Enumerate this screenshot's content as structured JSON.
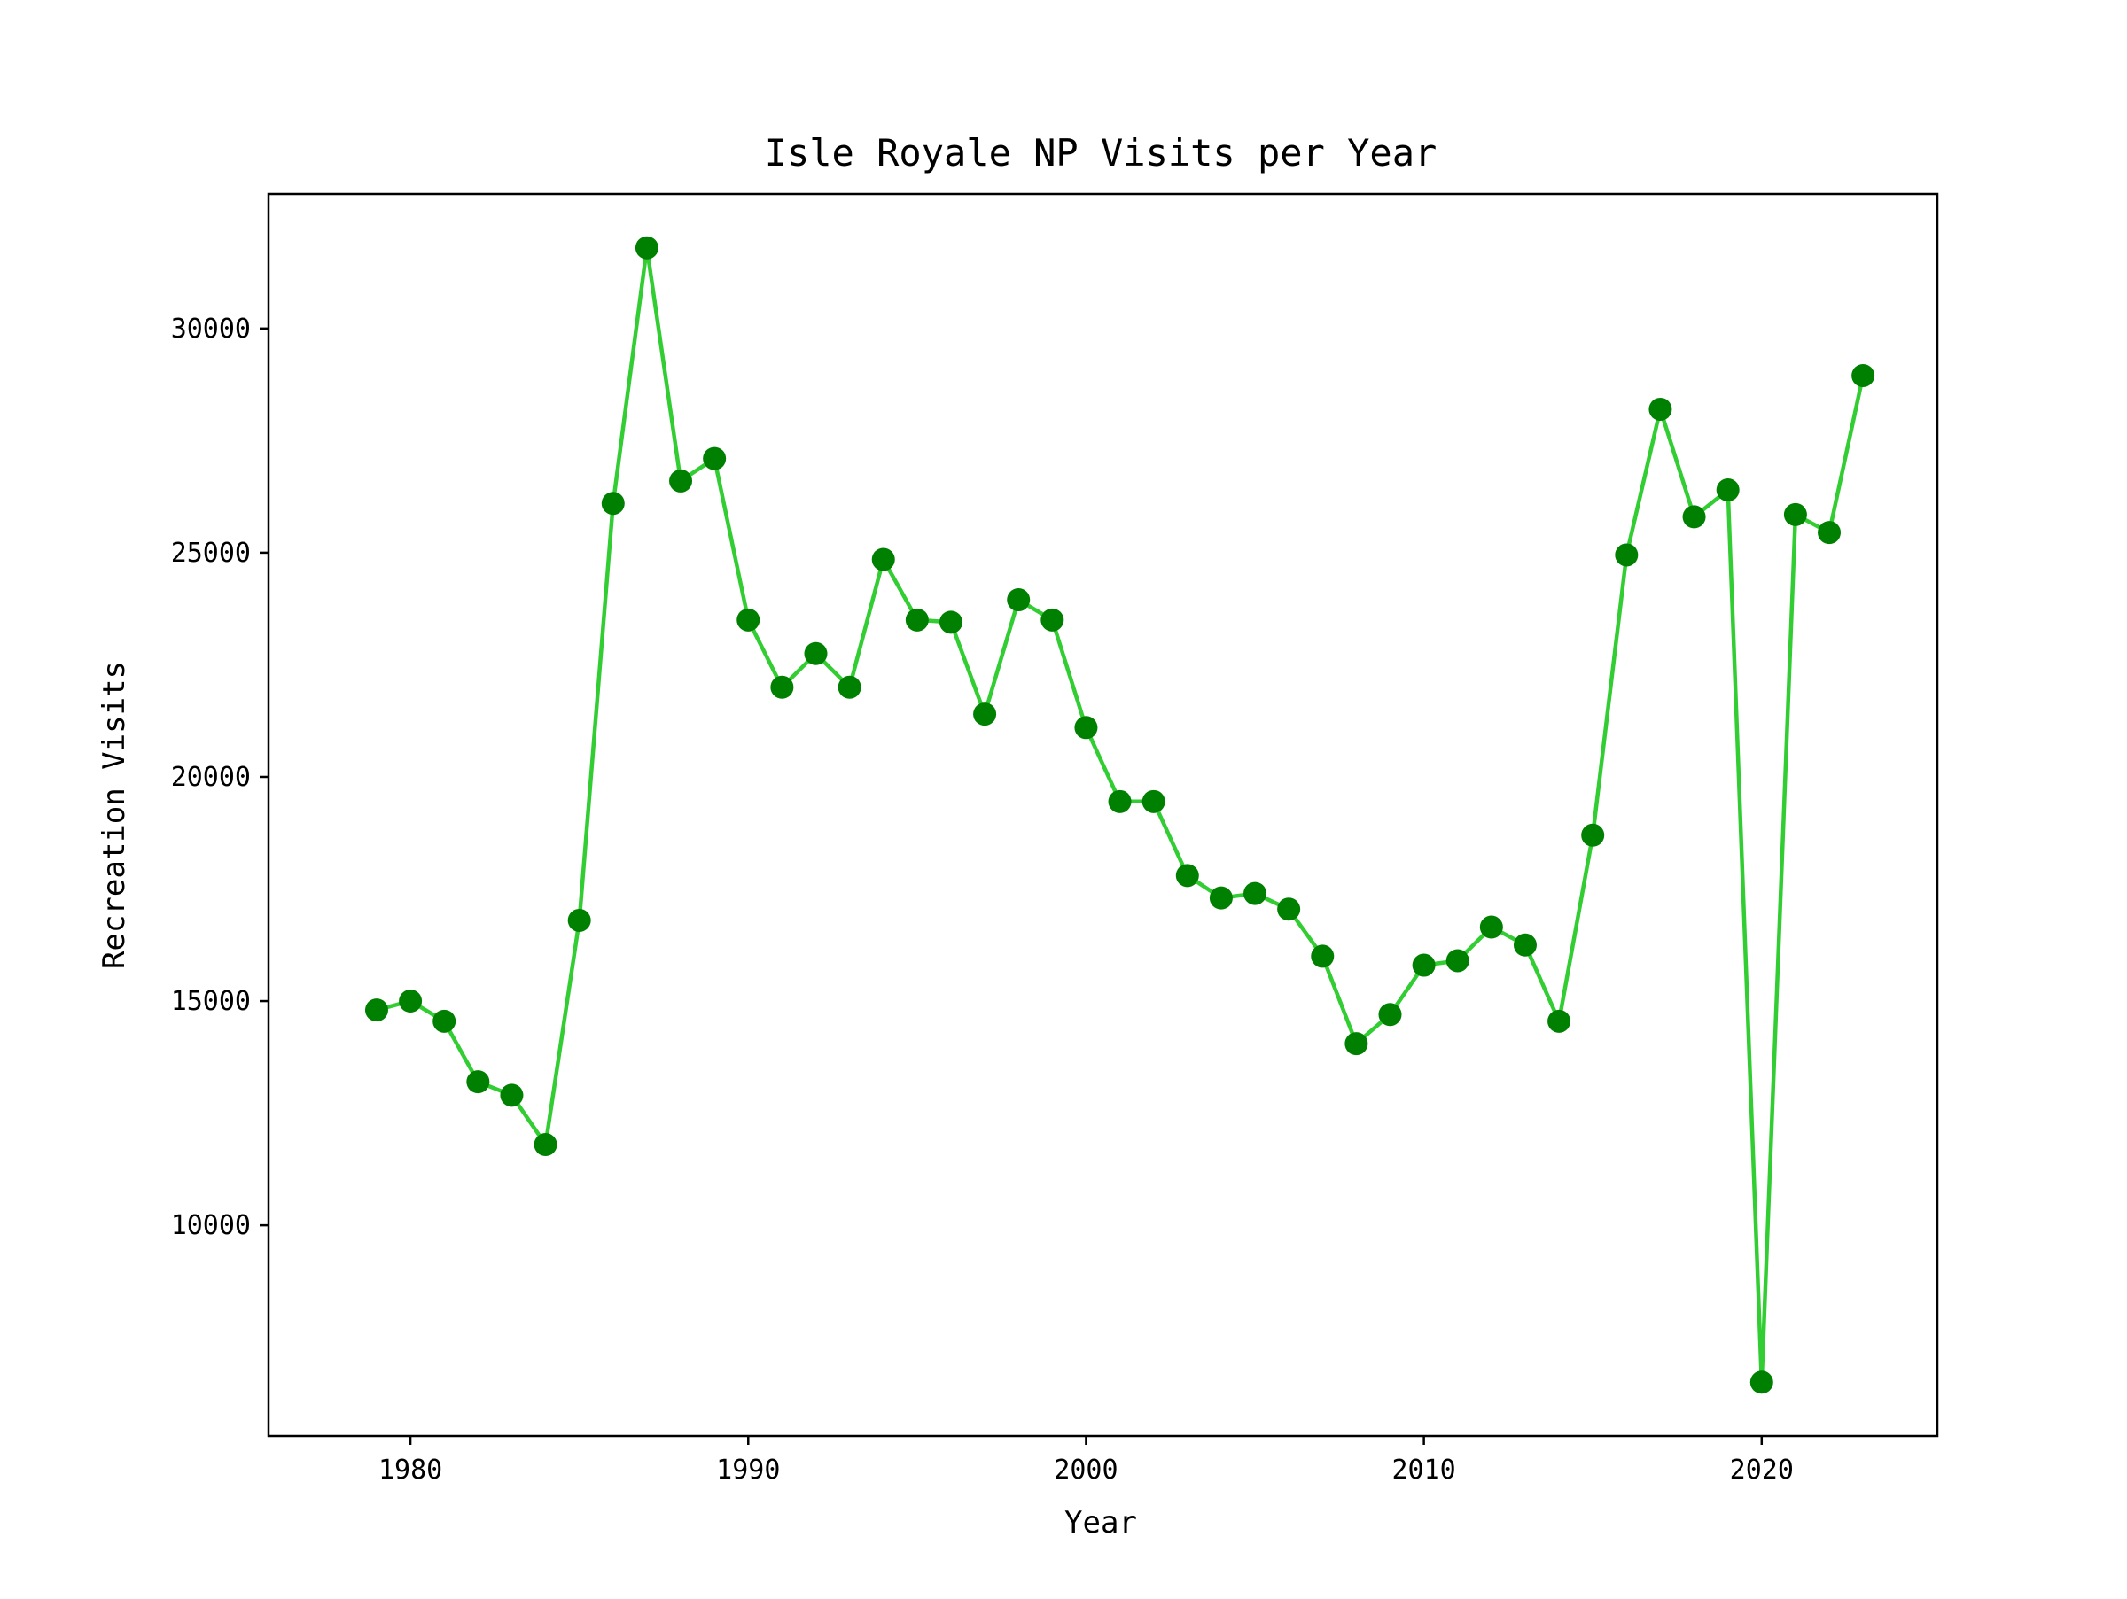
{
  "chart_data": {
    "type": "line",
    "title": "Isle Royale NP Visits per Year",
    "xlabel": "Year",
    "ylabel": "Recreation Visits",
    "xlim": [
      1975.8,
      2025.2
    ],
    "ylim": [
      5300,
      33000
    ],
    "x_ticks": [
      1980,
      1990,
      2000,
      2010,
      2020
    ],
    "y_ticks": [
      10000,
      15000,
      20000,
      25000,
      30000
    ],
    "grid": false,
    "legend": "none",
    "line_color": "#32cd32",
    "marker_color": "#008000",
    "series": [
      {
        "x": [
          1979,
          1980,
          1981,
          1982,
          1983,
          1984,
          1985,
          1986,
          1987,
          1988,
          1989,
          1990,
          1991,
          1992,
          1993,
          1994,
          1995,
          1996,
          1997,
          1998,
          1999,
          2000,
          2001,
          2002,
          2003,
          2004,
          2005,
          2006,
          2007,
          2008,
          2009,
          2010,
          2011,
          2012,
          2013,
          2014,
          2015,
          2016,
          2017,
          2018,
          2019,
          2020,
          2021,
          2022,
          2023
        ],
        "values": [
          14800,
          15000,
          14550,
          13200,
          12900,
          11800,
          16800,
          26100,
          31800,
          26600,
          27100,
          23500,
          22000,
          22750,
          22000,
          24850,
          23500,
          23450,
          21400,
          23950,
          23500,
          21100,
          19450,
          19450,
          17800,
          17300,
          17400,
          17050,
          16000,
          14050,
          14700,
          15800,
          15900,
          16650,
          16250,
          14550,
          18700,
          24950,
          28200,
          25800,
          26400,
          6500,
          25850,
          25450,
          28950
        ]
      }
    ]
  }
}
